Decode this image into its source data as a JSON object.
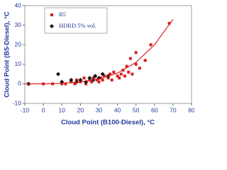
{
  "chart_data": {
    "type": "scatter",
    "x_label": "Cloud Point (B100-Diesel), °C",
    "y_label": "Cloud Point (B5-Diesel), °C",
    "xlim": [
      -10,
      80
    ],
    "xticks": [
      -10,
      0,
      10,
      20,
      30,
      40,
      50,
      60,
      70,
      80
    ],
    "ylim": [
      -10,
      40
    ],
    "yticks": [
      -10,
      0,
      10,
      20,
      30,
      40
    ],
    "legend": "upper left",
    "series": [
      {
        "name": "B5",
        "color": "#d42020",
        "marker": "square",
        "x": [
          -8,
          0,
          5,
          10,
          12,
          15,
          17,
          18,
          20,
          22,
          23,
          25,
          26,
          27,
          28,
          29,
          30,
          31,
          32,
          33,
          35,
          36,
          37,
          38,
          40,
          41,
          42,
          43,
          44,
          45,
          46,
          47,
          48,
          50,
          50,
          52,
          55,
          58,
          68
        ],
        "values": [
          0,
          0,
          0,
          0,
          0,
          1,
          0,
          2,
          1,
          3,
          0,
          2,
          1,
          3,
          4,
          2,
          1,
          3,
          2,
          4,
          3,
          5,
          2,
          6,
          4,
          3,
          5,
          7,
          4,
          9,
          6,
          13,
          5,
          10,
          16,
          8,
          12,
          20,
          31
        ]
      },
      {
        "name": "HDRD 5% vol.",
        "color": "#111111",
        "marker": "diamond",
        "x": [
          -8,
          8,
          10,
          15,
          18,
          20,
          23,
          25,
          27,
          28,
          30,
          32,
          35
        ],
        "values": [
          0,
          5,
          1,
          2,
          1,
          2,
          1,
          3,
          2,
          4,
          3,
          5,
          4
        ]
      },
      {
        "color": "#e02020",
        "marker": "none",
        "x": [
          -10,
          0,
          10,
          20,
          30,
          40,
          50,
          60,
          70
        ],
        "values": [
          0,
          0,
          0.3,
          1,
          2.5,
          5.5,
          11,
          20,
          33
        ]
      }
    ]
  }
}
